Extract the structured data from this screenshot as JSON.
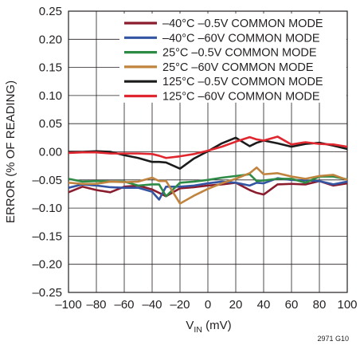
{
  "chart_data": {
    "type": "line",
    "xlabel_main": "V",
    "xlabel_sub": "IN",
    "xlabel_unit": " (mV)",
    "ylabel": "ERROR (% OF READING)",
    "figure_id": "2971 G10",
    "xlim": [
      -100,
      100
    ],
    "ylim": [
      -0.25,
      0.25
    ],
    "x_ticks": [
      -100,
      -80,
      -60,
      -40,
      -20,
      0,
      20,
      40,
      60,
      80,
      100
    ],
    "x_tick_labels": [
      "–100",
      "–80",
      "–60",
      "–40",
      "–20",
      "0",
      "20",
      "40",
      "60",
      "80",
      "100"
    ],
    "y_ticks": [
      0.25,
      0.2,
      0.15,
      0.1,
      0.05,
      0.0,
      -0.05,
      -0.1,
      -0.15,
      -0.2,
      -0.25
    ],
    "y_tick_labels": [
      "0.25",
      "0.20",
      "0.15",
      "0.10",
      "0.05",
      "0.00",
      "–0.05",
      "–0.10",
      "–0.15",
      "–0.20",
      "–0.25"
    ],
    "grid": true,
    "legend_position": "top-right",
    "x": [
      -100,
      -90,
      -80,
      -70,
      -60,
      -50,
      -40,
      -35,
      -30,
      -20,
      -10,
      0,
      10,
      20,
      30,
      35,
      40,
      50,
      60,
      70,
      80,
      90,
      100
    ],
    "series": [
      {
        "name": "–40°C –0.5V COMMON MODE",
        "color": "#8b1c2e",
        "values": [
          -0.072,
          -0.062,
          -0.068,
          -0.072,
          -0.062,
          -0.06,
          -0.067,
          -0.073,
          -0.079,
          -0.065,
          -0.063,
          -0.06,
          -0.058,
          -0.055,
          -0.068,
          -0.073,
          -0.076,
          -0.058,
          -0.057,
          -0.058,
          -0.052,
          -0.06,
          -0.056
        ]
      },
      {
        "name": "–40°C –60V COMMON MODE",
        "color": "#3355a3",
        "values": [
          -0.064,
          -0.058,
          -0.06,
          -0.063,
          -0.064,
          -0.064,
          -0.071,
          -0.085,
          -0.062,
          -0.062,
          -0.06,
          -0.056,
          -0.053,
          -0.055,
          -0.06,
          -0.055,
          -0.056,
          -0.047,
          -0.05,
          -0.051,
          -0.052,
          -0.058,
          -0.053
        ]
      },
      {
        "name": "25°C –0.5V COMMON MODE",
        "color": "#2e8b45",
        "values": [
          -0.048,
          -0.053,
          -0.052,
          -0.053,
          -0.053,
          -0.06,
          -0.058,
          -0.058,
          -0.079,
          -0.055,
          -0.053,
          -0.05,
          -0.046,
          -0.043,
          -0.04,
          -0.052,
          -0.051,
          -0.048,
          -0.048,
          -0.055,
          -0.044,
          -0.044,
          -0.049
        ]
      },
      {
        "name": "25°C –60V COMMON MODE",
        "color": "#c0843f",
        "values": [
          -0.055,
          -0.057,
          -0.057,
          -0.053,
          -0.054,
          -0.053,
          -0.046,
          -0.052,
          -0.052,
          -0.092,
          -0.078,
          -0.066,
          -0.056,
          -0.048,
          -0.038,
          -0.028,
          -0.04,
          -0.038,
          -0.044,
          -0.048,
          -0.043,
          -0.041,
          -0.05
        ]
      },
      {
        "name": "125°C –0.5V COMMON MODE",
        "color": "#1b1b1b",
        "values": [
          0.0,
          0.0,
          0.001,
          0.0,
          -0.006,
          -0.011,
          -0.018,
          -0.018,
          -0.019,
          -0.03,
          -0.012,
          0.001,
          0.015,
          0.025,
          0.01,
          0.016,
          0.02,
          0.015,
          0.009,
          0.014,
          0.016,
          0.011,
          0.005
        ]
      },
      {
        "name": "125°C –60V COMMON MODE",
        "color": "#e0262e",
        "values": [
          -0.002,
          -0.001,
          -0.001,
          -0.003,
          -0.003,
          -0.003,
          -0.004,
          -0.007,
          -0.011,
          -0.008,
          -0.004,
          0.002,
          0.009,
          0.018,
          0.026,
          0.022,
          0.02,
          0.027,
          0.013,
          0.017,
          0.014,
          0.013,
          0.009
        ]
      }
    ]
  }
}
